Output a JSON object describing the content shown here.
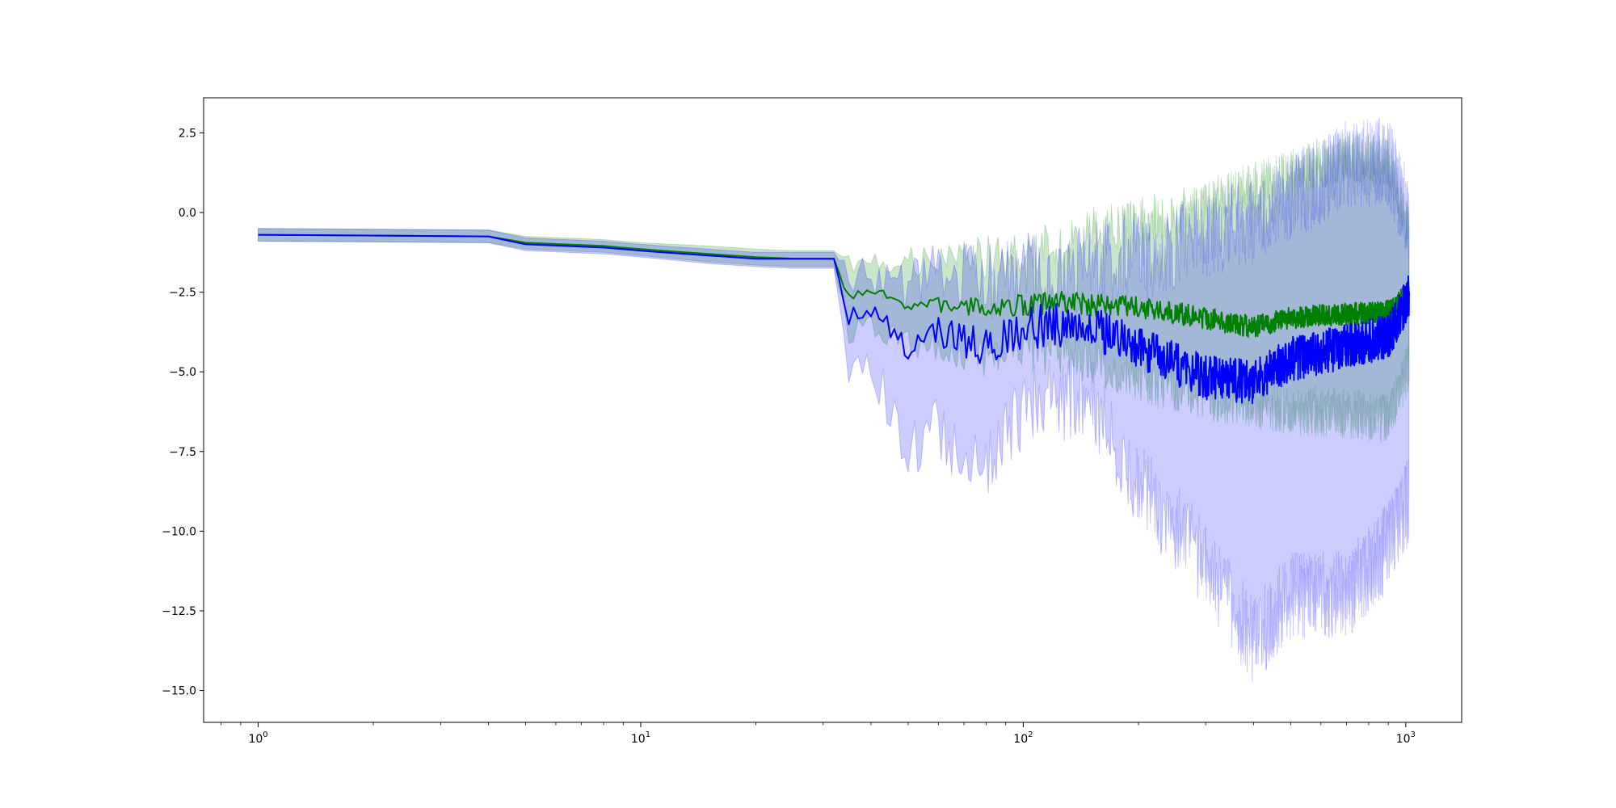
{
  "chart_data": {
    "type": "line",
    "title": "",
    "xlabel": "",
    "ylabel": "",
    "xscale": "log",
    "xlim": [
      0.72,
      1400
    ],
    "ylim": [
      -16.0,
      3.6
    ],
    "grid": false,
    "x_ticks": [
      {
        "value": 1,
        "base": "10",
        "exp": "0"
      },
      {
        "value": 10,
        "base": "10",
        "exp": "1"
      },
      {
        "value": 100,
        "base": "10",
        "exp": "2"
      },
      {
        "value": 1000,
        "base": "10",
        "exp": "3"
      }
    ],
    "y_ticks": [
      {
        "value": 2.5,
        "label": "2.5"
      },
      {
        "value": 0.0,
        "label": "0.0"
      },
      {
        "value": -2.5,
        "label": "−2.5"
      },
      {
        "value": -5.0,
        "label": "−5.0"
      },
      {
        "value": -7.5,
        "label": "−7.5"
      },
      {
        "value": -10.0,
        "label": "−10.0"
      },
      {
        "value": -12.5,
        "label": "−12.5"
      },
      {
        "value": -15.0,
        "label": "−15.0"
      }
    ],
    "series": [
      {
        "color": "#008000",
        "band_color": "#008000",
        "x": [
          1,
          4,
          5,
          8,
          10,
          15,
          20,
          25,
          32,
          35,
          40,
          50,
          60,
          80,
          100,
          130,
          150,
          200,
          300,
          400,
          500,
          700,
          900,
          1020
        ],
        "y": [
          -0.7,
          -0.75,
          -0.95,
          -1.05,
          -1.15,
          -1.3,
          -1.4,
          -1.45,
          -1.45,
          -2.7,
          -2.5,
          -2.9,
          -2.9,
          -3.0,
          -2.9,
          -2.8,
          -2.9,
          -3.0,
          -3.3,
          -3.6,
          -3.3,
          -3.2,
          -3.1,
          -2.5
        ],
        "lower": [
          -0.9,
          -0.95,
          -1.15,
          -1.25,
          -1.35,
          -1.55,
          -1.65,
          -1.7,
          -1.7,
          -3.8,
          -3.5,
          -4.2,
          -4.3,
          -4.5,
          -4.2,
          -4.4,
          -4.6,
          -5.2,
          -5.7,
          -6.0,
          -6.2,
          -6.3,
          -6.5,
          -4.8
        ],
        "upper": [
          -0.5,
          -0.55,
          -0.75,
          -0.85,
          -0.95,
          -1.05,
          -1.15,
          -1.2,
          -1.2,
          -1.6,
          -1.5,
          -1.5,
          -1.5,
          -1.4,
          -1.3,
          -1.0,
          -0.6,
          -0.3,
          0.2,
          0.8,
          1.2,
          1.8,
          1.6,
          -0.6
        ],
        "noise": {
          "amp": 0.35,
          "band_amp": 0.8,
          "seed": 7
        }
      },
      {
        "color": "#0000ff",
        "band_color": "#0000ff",
        "x": [
          1,
          4,
          5,
          8,
          10,
          15,
          20,
          25,
          32,
          35,
          40,
          50,
          60,
          80,
          100,
          130,
          150,
          200,
          300,
          400,
          500,
          700,
          900,
          1020
        ],
        "y": [
          -0.7,
          -0.75,
          -1.0,
          -1.1,
          -1.2,
          -1.35,
          -1.45,
          -1.45,
          -1.45,
          -3.3,
          -3.1,
          -4.3,
          -3.8,
          -4.2,
          -3.6,
          -3.5,
          -3.6,
          -4.2,
          -5.2,
          -5.3,
          -4.6,
          -4.2,
          -3.9,
          -2.6
        ],
        "lower": [
          -0.9,
          -0.95,
          -1.2,
          -1.3,
          -1.4,
          -1.6,
          -1.7,
          -1.75,
          -1.75,
          -4.8,
          -4.7,
          -7.5,
          -6.8,
          -8.2,
          -6.2,
          -5.8,
          -6.0,
          -8.5,
          -11.0,
          -13.5,
          -12.0,
          -12.0,
          -10.5,
          -9.0
        ],
        "upper": [
          -0.5,
          -0.55,
          -0.8,
          -0.9,
          -1.0,
          -1.15,
          -1.25,
          -1.25,
          -1.25,
          -2.0,
          -2.1,
          -2.4,
          -1.7,
          -2.2,
          -2.0,
          -1.9,
          -1.6,
          -1.4,
          -0.8,
          -0.2,
          0.5,
          1.5,
          1.6,
          -0.2
        ],
        "noise": {
          "amp": 0.7,
          "band_amp": 1.4,
          "seed": 13
        }
      }
    ]
  }
}
